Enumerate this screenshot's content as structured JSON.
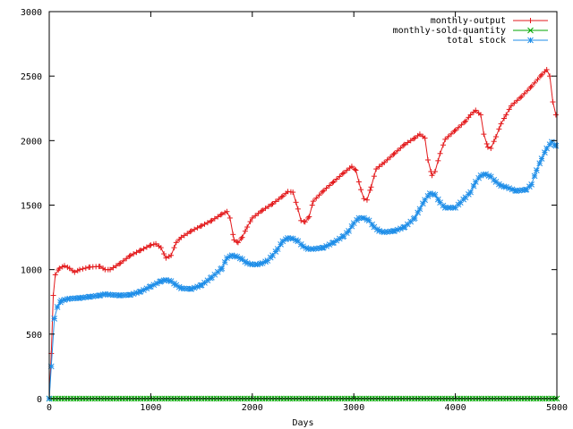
{
  "chart_data": {
    "type": "line",
    "title": "",
    "xlabel": "Days",
    "ylabel": "",
    "xlim": [
      0,
      5000
    ],
    "ylim": [
      0,
      3000
    ],
    "xticks": [
      0,
      1000,
      2000,
      3000,
      4000,
      5000
    ],
    "yticks": [
      0,
      500,
      1000,
      1500,
      2000,
      2500,
      3000
    ],
    "grid": false,
    "legend_position": "top-right",
    "series": [
      {
        "name": "monthly-output",
        "color": "#e31a1c",
        "marker": "plus",
        "points": [
          [
            0,
            0
          ],
          [
            20,
            350
          ],
          [
            40,
            800
          ],
          [
            60,
            960
          ],
          [
            100,
            1010
          ],
          [
            150,
            1030
          ],
          [
            200,
            1010
          ],
          [
            250,
            980
          ],
          [
            300,
            1000
          ],
          [
            400,
            1020
          ],
          [
            500,
            1025
          ],
          [
            550,
            1000
          ],
          [
            600,
            1000
          ],
          [
            700,
            1050
          ],
          [
            800,
            1110
          ],
          [
            900,
            1150
          ],
          [
            1000,
            1190
          ],
          [
            1050,
            1200
          ],
          [
            1100,
            1170
          ],
          [
            1150,
            1090
          ],
          [
            1200,
            1110
          ],
          [
            1250,
            1210
          ],
          [
            1300,
            1250
          ],
          [
            1400,
            1300
          ],
          [
            1500,
            1340
          ],
          [
            1600,
            1380
          ],
          [
            1700,
            1430
          ],
          [
            1750,
            1450
          ],
          [
            1780,
            1400
          ],
          [
            1820,
            1230
          ],
          [
            1860,
            1210
          ],
          [
            1900,
            1250
          ],
          [
            1950,
            1330
          ],
          [
            2000,
            1400
          ],
          [
            2100,
            1460
          ],
          [
            2200,
            1510
          ],
          [
            2300,
            1570
          ],
          [
            2350,
            1605
          ],
          [
            2400,
            1600
          ],
          [
            2450,
            1470
          ],
          [
            2480,
            1380
          ],
          [
            2520,
            1370
          ],
          [
            2560,
            1410
          ],
          [
            2600,
            1530
          ],
          [
            2700,
            1610
          ],
          [
            2800,
            1680
          ],
          [
            2900,
            1750
          ],
          [
            2980,
            1800
          ],
          [
            3020,
            1770
          ],
          [
            3070,
            1620
          ],
          [
            3100,
            1550
          ],
          [
            3130,
            1540
          ],
          [
            3170,
            1640
          ],
          [
            3220,
            1780
          ],
          [
            3300,
            1830
          ],
          [
            3400,
            1900
          ],
          [
            3500,
            1970
          ],
          [
            3600,
            2020
          ],
          [
            3650,
            2050
          ],
          [
            3700,
            2020
          ],
          [
            3730,
            1850
          ],
          [
            3770,
            1730
          ],
          [
            3800,
            1760
          ],
          [
            3850,
            1900
          ],
          [
            3900,
            2010
          ],
          [
            4000,
            2080
          ],
          [
            4100,
            2150
          ],
          [
            4150,
            2200
          ],
          [
            4200,
            2235
          ],
          [
            4250,
            2200
          ],
          [
            4280,
            2050
          ],
          [
            4320,
            1950
          ],
          [
            4350,
            1940
          ],
          [
            4400,
            2030
          ],
          [
            4450,
            2130
          ],
          [
            4500,
            2200
          ],
          [
            4550,
            2270
          ],
          [
            4650,
            2340
          ],
          [
            4750,
            2420
          ],
          [
            4850,
            2510
          ],
          [
            4900,
            2550
          ],
          [
            4930,
            2500
          ],
          [
            4960,
            2300
          ],
          [
            4990,
            2200
          ]
        ]
      },
      {
        "name": "monthly-sold-quantity",
        "color": "#00a600",
        "marker": "cross",
        "points": [
          [
            0,
            0
          ],
          [
            5000,
            0
          ]
        ]
      },
      {
        "name": "total stock",
        "color": "#1f8ee8",
        "marker": "star",
        "points": [
          [
            0,
            0
          ],
          [
            20,
            250
          ],
          [
            50,
            620
          ],
          [
            80,
            710
          ],
          [
            120,
            760
          ],
          [
            200,
            775
          ],
          [
            300,
            780
          ],
          [
            400,
            790
          ],
          [
            500,
            800
          ],
          [
            550,
            810
          ],
          [
            600,
            805
          ],
          [
            700,
            800
          ],
          [
            800,
            805
          ],
          [
            900,
            830
          ],
          [
            1000,
            870
          ],
          [
            1100,
            910
          ],
          [
            1150,
            920
          ],
          [
            1200,
            910
          ],
          [
            1250,
            880
          ],
          [
            1300,
            855
          ],
          [
            1400,
            850
          ],
          [
            1500,
            880
          ],
          [
            1600,
            940
          ],
          [
            1700,
            1010
          ],
          [
            1750,
            1090
          ],
          [
            1800,
            1110
          ],
          [
            1850,
            1100
          ],
          [
            1900,
            1080
          ],
          [
            1950,
            1050
          ],
          [
            2000,
            1040
          ],
          [
            2050,
            1040
          ],
          [
            2100,
            1050
          ],
          [
            2150,
            1070
          ],
          [
            2200,
            1110
          ],
          [
            2250,
            1160
          ],
          [
            2300,
            1220
          ],
          [
            2350,
            1245
          ],
          [
            2400,
            1240
          ],
          [
            2450,
            1220
          ],
          [
            2500,
            1180
          ],
          [
            2550,
            1160
          ],
          [
            2600,
            1160
          ],
          [
            2700,
            1170
          ],
          [
            2800,
            1210
          ],
          [
            2900,
            1260
          ],
          [
            2950,
            1300
          ],
          [
            3000,
            1360
          ],
          [
            3050,
            1400
          ],
          [
            3100,
            1400
          ],
          [
            3150,
            1380
          ],
          [
            3200,
            1330
          ],
          [
            3250,
            1300
          ],
          [
            3300,
            1290
          ],
          [
            3400,
            1300
          ],
          [
            3500,
            1330
          ],
          [
            3600,
            1400
          ],
          [
            3650,
            1470
          ],
          [
            3700,
            1540
          ],
          [
            3750,
            1590
          ],
          [
            3800,
            1580
          ],
          [
            3850,
            1520
          ],
          [
            3900,
            1480
          ],
          [
            3950,
            1480
          ],
          [
            4000,
            1480
          ],
          [
            4050,
            1520
          ],
          [
            4100,
            1560
          ],
          [
            4150,
            1600
          ],
          [
            4200,
            1680
          ],
          [
            4250,
            1730
          ],
          [
            4300,
            1740
          ],
          [
            4350,
            1720
          ],
          [
            4400,
            1680
          ],
          [
            4450,
            1650
          ],
          [
            4500,
            1640
          ],
          [
            4600,
            1610
          ],
          [
            4700,
            1620
          ],
          [
            4750,
            1660
          ],
          [
            4800,
            1770
          ],
          [
            4850,
            1860
          ],
          [
            4900,
            1940
          ],
          [
            4950,
            1990
          ],
          [
            4990,
            1960
          ]
        ]
      }
    ]
  }
}
